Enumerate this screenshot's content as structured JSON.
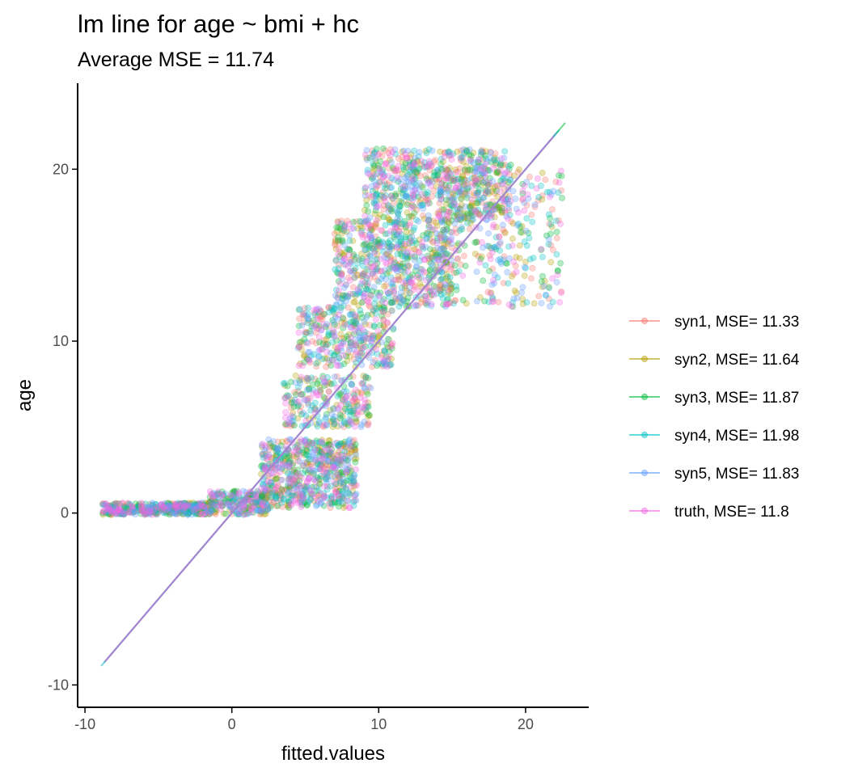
{
  "chart_data": {
    "type": "scatter",
    "title": "lm line for age ~ bmi + hc",
    "subtitle": "Average MSE = 11.74",
    "xlabel": "fitted.values",
    "ylabel": "age",
    "xlim": [
      -10.5,
      24.3
    ],
    "ylim": [
      -11.3,
      25
    ],
    "x_ticks": [
      {
        "value": -10,
        "label": "-10"
      },
      {
        "value": 0,
        "label": "0"
      },
      {
        "value": 10,
        "label": "10"
      },
      {
        "value": 20,
        "label": "20"
      }
    ],
    "y_ticks": [
      {
        "value": -10,
        "label": "-10"
      },
      {
        "value": 0,
        "label": "0"
      },
      {
        "value": 10,
        "label": "10"
      },
      {
        "value": 20,
        "label": "20"
      }
    ],
    "grid": false,
    "legend_position": "right",
    "point_alpha": 0.3,
    "series": [
      {
        "name": "syn1, MSE= 11.33",
        "color": "#F8766D",
        "line": {
          "x": [
            -8.6,
            22.0
          ],
          "y": [
            -8.6,
            22.0
          ]
        }
      },
      {
        "name": "syn2, MSE= 11.64",
        "color": "#B79F00",
        "line": {
          "x": [
            -8.7,
            22.2
          ],
          "y": [
            -8.7,
            22.2
          ]
        }
      },
      {
        "name": "syn3, MSE= 11.87",
        "color": "#00BA38",
        "line": {
          "x": [
            -8.5,
            22.7
          ],
          "y": [
            -8.5,
            22.7
          ]
        }
      },
      {
        "name": "syn4, MSE= 11.98",
        "color": "#00BFC4",
        "line": {
          "x": [
            -8.9,
            22.3
          ],
          "y": [
            -8.9,
            22.3
          ]
        }
      },
      {
        "name": "syn5, MSE= 11.83",
        "color": "#619CFF",
        "line": {
          "x": [
            -8.7,
            22.1
          ],
          "y": [
            -8.7,
            22.1
          ]
        }
      },
      {
        "name": "truth, MSE= 11.8",
        "color": "#F564E3",
        "line": {
          "x": [
            -8.6,
            21.9
          ],
          "y": [
            -8.6,
            21.9
          ]
        }
      }
    ],
    "clusters": [
      {
        "x": [
          -8.8,
          -1.5
        ],
        "y": [
          -0.1,
          0.6
        ],
        "n": 70
      },
      {
        "x": [
          -1.5,
          2.5
        ],
        "y": [
          -0.1,
          1.3
        ],
        "n": 40
      },
      {
        "x": [
          2.0,
          8.5
        ],
        "y": [
          0.3,
          4.3
        ],
        "n": 110
      },
      {
        "x": [
          3.5,
          9.5
        ],
        "y": [
          5.0,
          8.0
        ],
        "n": 45
      },
      {
        "x": [
          4.5,
          11.0
        ],
        "y": [
          8.5,
          12.0
        ],
        "n": 60
      },
      {
        "x": [
          7.0,
          15.0
        ],
        "y": [
          12.0,
          17.0
        ],
        "n": 110
      },
      {
        "x": [
          9.0,
          19.0
        ],
        "y": [
          17.0,
          21.2
        ],
        "n": 110
      },
      {
        "x": [
          14.0,
          22.5
        ],
        "y": [
          12.0,
          20.0
        ],
        "n": 60
      }
    ]
  }
}
